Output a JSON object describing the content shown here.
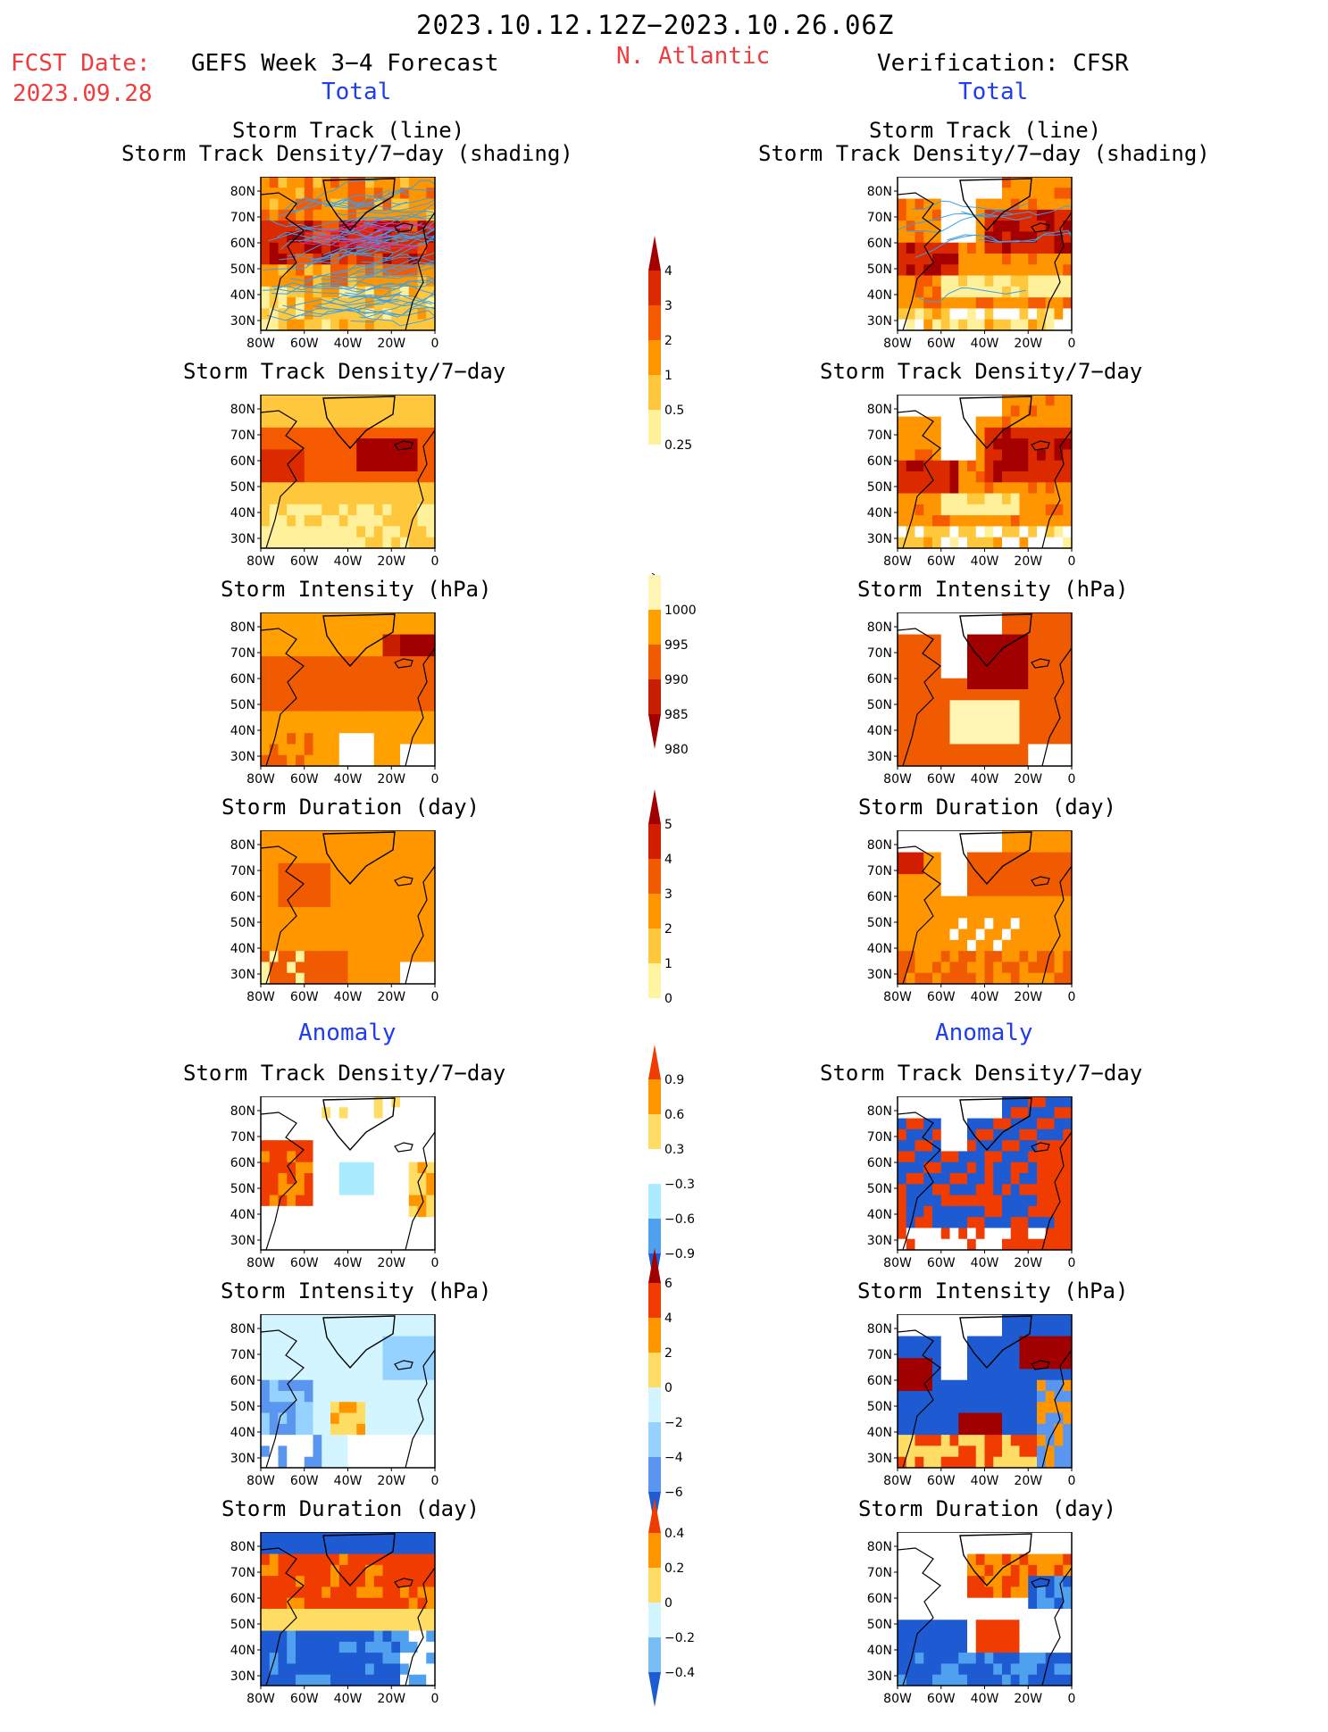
{
  "header": {
    "period": "2023.10.12.12Z−2023.10.26.06Z",
    "fcst_label": "FCST Date:",
    "fcst_date": "2023.09.28",
    "forecast_title": "GEFS Week 3−4 Forecast",
    "region": "N. Atlantic",
    "verification": "Verification: CFSR"
  },
  "sections": {
    "total": "Total",
    "anomaly": "Anomaly"
  },
  "titles": {
    "track_line": "Storm Track (line)",
    "track_shading": "Storm Track Density/7−day (shading)",
    "density": "Storm Track Density/7−day",
    "intensity": "Storm Intensity (hPa)",
    "duration": "Storm Duration (day)"
  },
  "axes": {
    "lat_ticks": [
      "80N",
      "70N",
      "60N",
      "50N",
      "40N",
      "30N"
    ],
    "lon_ticks": [
      "80W",
      "60W",
      "40W",
      "20W",
      "0"
    ]
  },
  "colorbars": {
    "density_total": {
      "labels": [
        "4",
        "3",
        "2",
        "1",
        "0.5",
        "0.25"
      ],
      "colors": [
        "#a50000",
        "#dc2a00",
        "#f55a00",
        "#ff9600",
        "#ffc83c",
        "#fff09b"
      ]
    },
    "intensity_total": {
      "labels": [
        "1000",
        "995",
        "990",
        "985",
        "980"
      ],
      "colors": [
        "#fff5b4",
        "#ffa000",
        "#f05a00",
        "#c81e00",
        "#a00000"
      ]
    },
    "duration_total": {
      "labels": [
        "5",
        "4",
        "3",
        "2",
        "1",
        "0"
      ],
      "colors": [
        "#a00000",
        "#d21e00",
        "#f05a00",
        "#ff9600",
        "#ffc83c",
        "#fff5a0"
      ]
    },
    "density_anom": {
      "labels": [
        "0.9",
        "0.6",
        "0.3",
        "−0.3",
        "−0.6",
        "−0.9"
      ],
      "colors": [
        "#f03c00",
        "#ff9600",
        "#ffdc64",
        "#ffffff",
        "#aaebff",
        "#50a0f0",
        "#1e5ad2"
      ]
    },
    "intensity_anom": {
      "labels": [
        "6",
        "4",
        "2",
        "0",
        "−2",
        "−4",
        "−6"
      ],
      "colors": [
        "#a00000",
        "#f03c00",
        "#ff9600",
        "#ffdc64",
        "#d2f5ff",
        "#96d2ff",
        "#5a96f0",
        "#1e5ad2"
      ]
    },
    "duration_anom": {
      "labels": [
        "0.4",
        "0.2",
        "0",
        "−0.2",
        "−0.4"
      ],
      "colors": [
        "#f03c00",
        "#ff9600",
        "#ffdc64",
        "#d2f5ff",
        "#78bef5",
        "#1e5ad2"
      ]
    }
  }
}
